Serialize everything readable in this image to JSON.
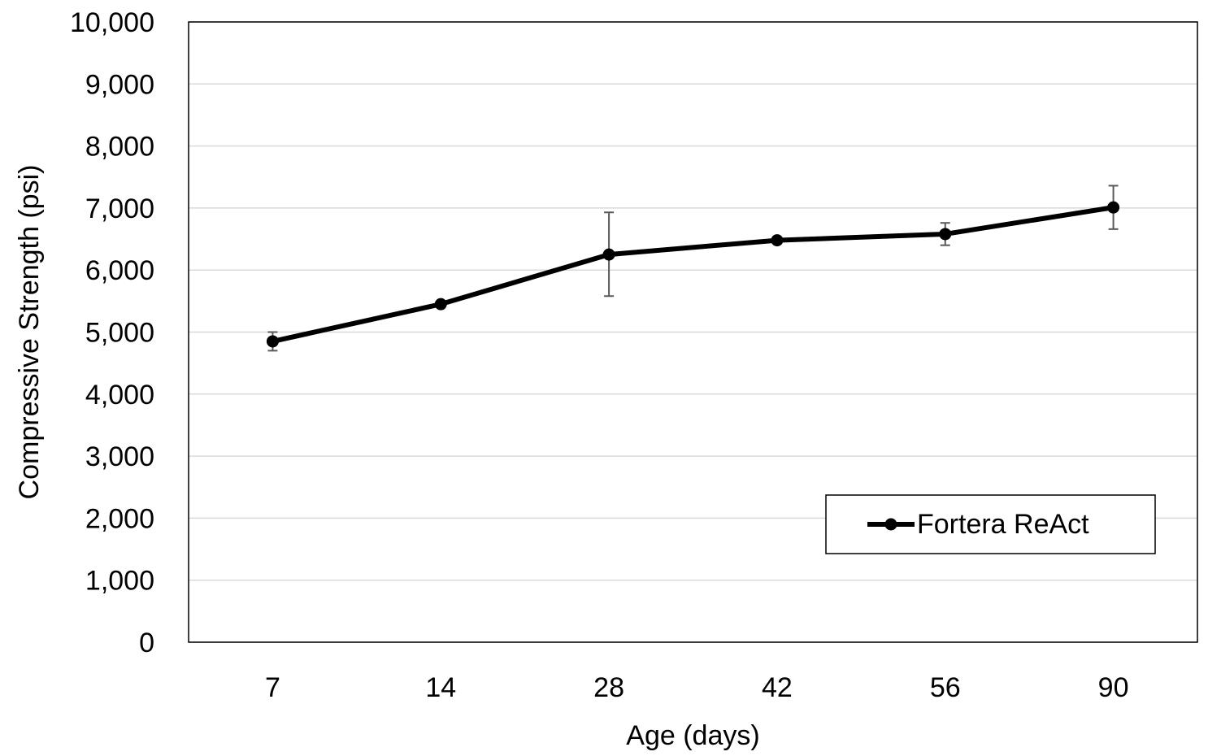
{
  "chart_data": {
    "type": "line",
    "title": "",
    "xlabel": "Age (days)",
    "ylabel": "Compressive Strength (psi)",
    "categories": [
      "7",
      "14",
      "28",
      "42",
      "56",
      "90"
    ],
    "ylim": [
      0,
      10000
    ],
    "yticks": [
      0,
      1000,
      2000,
      3000,
      4000,
      5000,
      6000,
      7000,
      8000,
      9000,
      10000
    ],
    "ytick_labels": [
      "0",
      "1,000",
      "2,000",
      "3,000",
      "4,000",
      "5,000",
      "6,000",
      "7,000",
      "8,000",
      "9,000",
      "10,000"
    ],
    "grid": "horizontal",
    "legend_position": "bottom-right",
    "series": [
      {
        "name": "Fortera ReAct",
        "color": "#000000",
        "values": [
          4850,
          5450,
          6250,
          6480,
          6580,
          7010
        ],
        "error_low": [
          4700,
          null,
          5580,
          null,
          6400,
          6660
        ],
        "error_high": [
          5000,
          null,
          6930,
          null,
          6760,
          7360
        ]
      }
    ]
  }
}
